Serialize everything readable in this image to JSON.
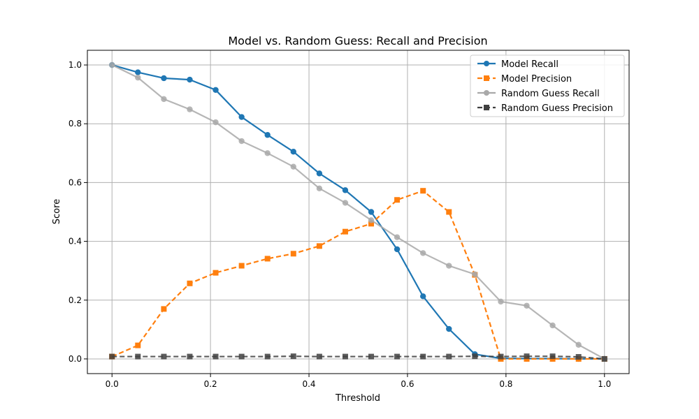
{
  "chart_data": {
    "type": "line",
    "title": "Model vs. Random Guess: Recall and Precision",
    "xlabel": "Threshold",
    "ylabel": "Score",
    "xlim": [
      -0.05,
      1.05
    ],
    "ylim": [
      -0.05,
      1.05
    ],
    "xticks": [
      "0.0",
      "0.2",
      "0.4",
      "0.6",
      "0.8",
      "1.0"
    ],
    "yticks": [
      "0.0",
      "0.2",
      "0.4",
      "0.6",
      "0.8",
      "1.0"
    ],
    "grid": true,
    "legend_position": "top-right",
    "x": [
      0.0,
      0.0526,
      0.1053,
      0.1579,
      0.2105,
      0.2632,
      0.3158,
      0.3684,
      0.4211,
      0.4737,
      0.5263,
      0.5789,
      0.6316,
      0.6842,
      0.7368,
      0.7895,
      0.8421,
      0.8947,
      0.9474,
      1.0
    ],
    "series": [
      {
        "name": "Model Recall",
        "color": "#1f77b4",
        "dashed": false,
        "marker": "circle",
        "values": [
          1.0,
          0.975,
          0.955,
          0.95,
          0.915,
          0.823,
          0.762,
          0.705,
          0.631,
          0.574,
          0.5,
          0.373,
          0.213,
          0.102,
          0.016,
          0.002,
          0.001,
          0.001,
          0.0,
          0.0
        ]
      },
      {
        "name": "Model Precision",
        "color": "#ff7f0e",
        "dashed": true,
        "marker": "square",
        "values": [
          0.008,
          0.046,
          0.17,
          0.257,
          0.293,
          0.317,
          0.341,
          0.358,
          0.384,
          0.433,
          0.46,
          0.541,
          0.572,
          0.5,
          0.286,
          0.0,
          0.0,
          0.0,
          0.0,
          0.0
        ]
      },
      {
        "name": "Random Guess Recall",
        "color": "#a9a9a9",
        "dashed": false,
        "marker": "circle",
        "values": [
          1.0,
          0.957,
          0.884,
          0.849,
          0.805,
          0.741,
          0.7,
          0.654,
          0.58,
          0.531,
          0.472,
          0.414,
          0.36,
          0.317,
          0.288,
          0.195,
          0.181,
          0.114,
          0.048,
          0.0
        ]
      },
      {
        "name": "Random Guess Precision",
        "color": "#404040",
        "dashed": true,
        "marker": "square",
        "values": [
          0.008,
          0.008,
          0.008,
          0.008,
          0.008,
          0.008,
          0.008,
          0.009,
          0.008,
          0.008,
          0.008,
          0.008,
          0.008,
          0.008,
          0.009,
          0.008,
          0.009,
          0.009,
          0.007,
          0.0
        ]
      }
    ]
  }
}
